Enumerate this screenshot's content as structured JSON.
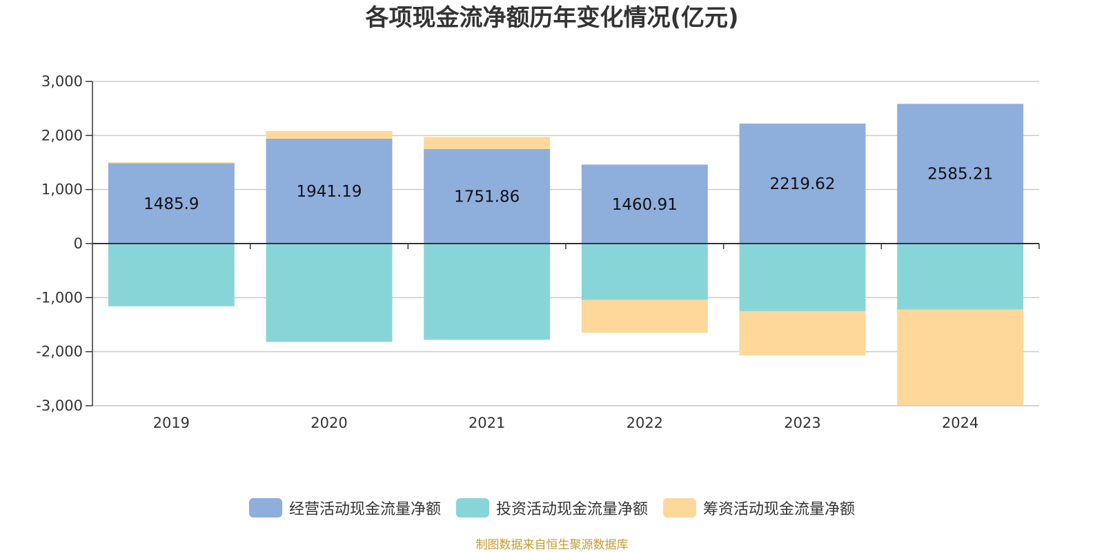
{
  "chart_data": {
    "type": "bar",
    "title": "各项现金流净额历年变化情况(亿元)",
    "categories": [
      "2019",
      "2020",
      "2021",
      "2022",
      "2023",
      "2024"
    ],
    "ylim": [
      -3000,
      3000
    ],
    "yticks": [
      3000,
      2000,
      1000,
      0,
      -1000,
      -2000,
      -3000
    ],
    "ytick_labels": [
      "3,000",
      "2,000",
      "1,000",
      "0",
      "-1,000",
      "-2,000",
      "-3,000"
    ],
    "grid": true,
    "legend_position": "bottom",
    "stacked": true,
    "series": [
      {
        "name": "经营活动现金流量净额",
        "color": "#8eaedc",
        "values": [
          1485.9,
          1941.19,
          1751.86,
          1460.91,
          2219.62,
          2585.21
        ],
        "labels": [
          "1485.9",
          "1941.19",
          "1751.86",
          "1460.91",
          "2219.62",
          "2585.21"
        ]
      },
      {
        "name": "投资活动现金流量净额",
        "color": "#88d5d8",
        "values": [
          -1160,
          -1820,
          -1780,
          -1040,
          -1250,
          -1220
        ]
      },
      {
        "name": "筹资活动现金流量净额",
        "color": "#fed89a",
        "values": [
          20,
          140,
          220,
          -610,
          -820,
          -1770
        ]
      }
    ]
  },
  "source": "制图数据来自恒生聚源数据库"
}
